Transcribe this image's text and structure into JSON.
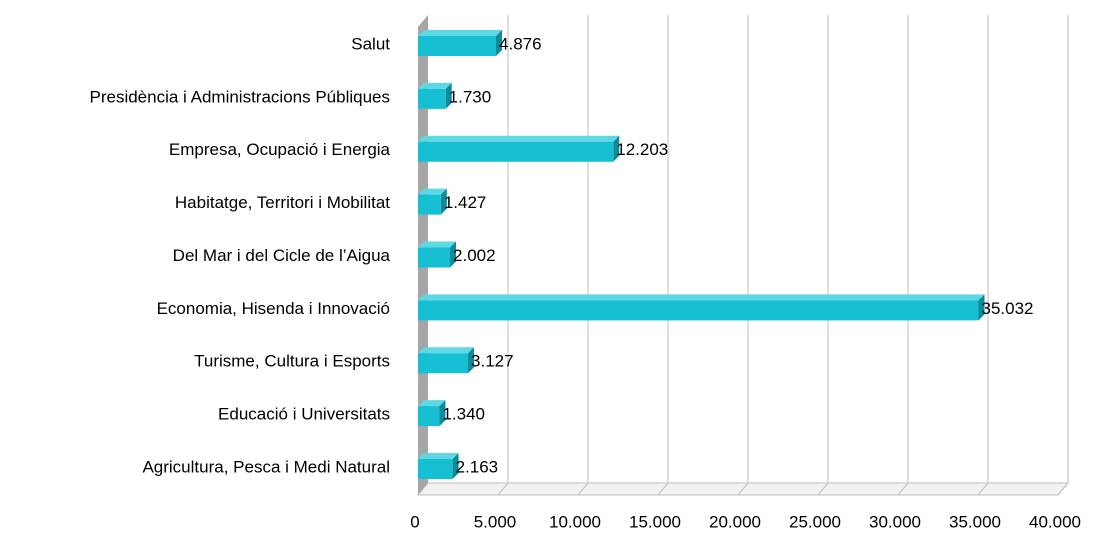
{
  "chart_data": {
    "type": "bar",
    "orientation": "horizontal",
    "three_d": true,
    "categories": [
      "Salut",
      "Presidència i Administracions Públiques",
      "Empresa, Ocupació i Energia",
      "Habitatge, Territori i Mobilitat",
      "Del Mar i del Cicle de l’Aigua",
      "Economia, Hisenda i Innovació",
      "Turisme, Cultura i Esports",
      "Educació i Universitats",
      "Agricultura, Pesca i Medi Natural"
    ],
    "values": [
      4876,
      1730,
      12203,
      1427,
      2002,
      35032,
      3127,
      1340,
      2163
    ],
    "value_labels": [
      "4.876",
      "1.730",
      "12.203",
      "1.427",
      "2.002",
      "35.032",
      "3.127",
      "1.340",
      "2.163"
    ],
    "color": "#17bfd3",
    "xlim": [
      0,
      40000
    ],
    "xticks": [
      0,
      {
        "value": 5000,
        "label": "5.000"
      },
      {
        "value": 10000,
        "label": "10.000"
      },
      {
        "value": 15000,
        "label": "15.000"
      },
      {
        "value": 20000,
        "label": "20.000"
      },
      {
        "value": 25000,
        "label": "25.000"
      },
      {
        "value": 30000,
        "label": "30.000"
      },
      {
        "value": 35000,
        "label": "35.000"
      },
      {
        "value": 40000,
        "label": "40.000"
      }
    ],
    "grid": true
  }
}
